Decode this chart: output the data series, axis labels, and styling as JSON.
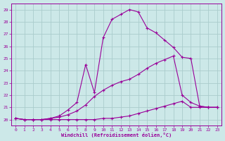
{
  "xlabel": "Windchill (Refroidissement éolien,°C)",
  "bg_color": "#cce8e8",
  "grid_color": "#aacccc",
  "line_color": "#990099",
  "xlim": [
    -0.5,
    23.5
  ],
  "ylim": [
    19.5,
    29.5
  ],
  "yticks": [
    20,
    21,
    22,
    23,
    24,
    25,
    26,
    27,
    28,
    29
  ],
  "xticks": [
    0,
    1,
    2,
    3,
    4,
    5,
    6,
    7,
    8,
    9,
    10,
    11,
    12,
    13,
    14,
    15,
    16,
    17,
    18,
    19,
    20,
    21,
    22,
    23
  ],
  "series1_x": [
    0,
    1,
    2,
    3,
    4,
    5,
    6,
    7,
    8,
    9,
    10,
    11,
    12,
    13,
    14,
    15,
    16,
    17,
    18,
    19,
    20,
    21,
    22,
    23
  ],
  "series1_y": [
    20.1,
    20.0,
    20.0,
    20.0,
    20.0,
    20.0,
    20.0,
    20.0,
    20.0,
    20.0,
    20.1,
    20.1,
    20.2,
    20.3,
    20.5,
    20.7,
    20.9,
    21.1,
    21.3,
    21.5,
    21.0,
    21.0,
    21.0,
    21.0
  ],
  "series2_x": [
    0,
    1,
    2,
    3,
    4,
    5,
    6,
    7,
    8,
    9,
    10,
    11,
    12,
    13,
    14,
    15,
    16,
    17,
    18,
    19,
    20,
    21,
    22,
    23
  ],
  "series2_y": [
    20.1,
    20.0,
    20.0,
    20.0,
    20.1,
    20.2,
    20.4,
    20.7,
    21.2,
    21.9,
    22.4,
    22.8,
    23.1,
    23.3,
    23.7,
    24.2,
    24.6,
    24.9,
    25.2,
    22.0,
    21.4,
    21.1,
    21.0,
    21.0
  ],
  "series3_x": [
    0,
    1,
    2,
    3,
    4,
    5,
    6,
    7,
    8,
    9,
    10,
    11,
    12,
    13,
    14,
    15,
    16,
    17,
    18,
    19,
    20,
    21,
    22,
    23
  ],
  "series3_y": [
    20.1,
    20.0,
    20.0,
    20.0,
    20.1,
    20.3,
    20.8,
    21.4,
    24.5,
    22.2,
    26.7,
    28.2,
    28.6,
    29.0,
    28.8,
    27.5,
    27.1,
    26.5,
    25.9,
    25.1,
    25.0,
    21.1,
    21.0,
    21.0
  ]
}
